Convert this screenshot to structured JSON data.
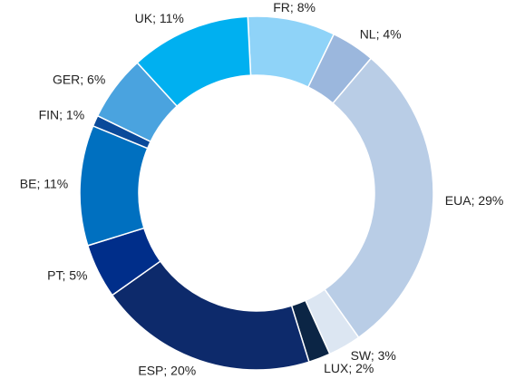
{
  "chart_data": {
    "type": "donut",
    "categories": [
      "FR",
      "NL",
      "EUA",
      "SW",
      "LUX",
      "ESP",
      "PT",
      "BE",
      "FIN",
      "GER",
      "UK"
    ],
    "values": [
      8,
      4,
      29,
      3,
      2,
      20,
      5,
      11,
      1,
      6,
      11
    ],
    "value_labels": [
      "FR; 8%",
      "NL; 4%",
      "EUA; 29%",
      "SW; 3%",
      "LUX; 2%",
      "ESP; 20%",
      "PT; 5%",
      "BE; 11%",
      "FIN; 1%",
      "GER; 6%",
      "UK; 11%"
    ],
    "colors": [
      "#8fd3f8",
      "#9bb7dd",
      "#b9cde6",
      "#dce6f2",
      "#0b2545",
      "#0d2a6b",
      "#002e8a",
      "#0070c0",
      "#0a4a9a",
      "#4aa3df",
      "#00b0f0"
    ]
  }
}
